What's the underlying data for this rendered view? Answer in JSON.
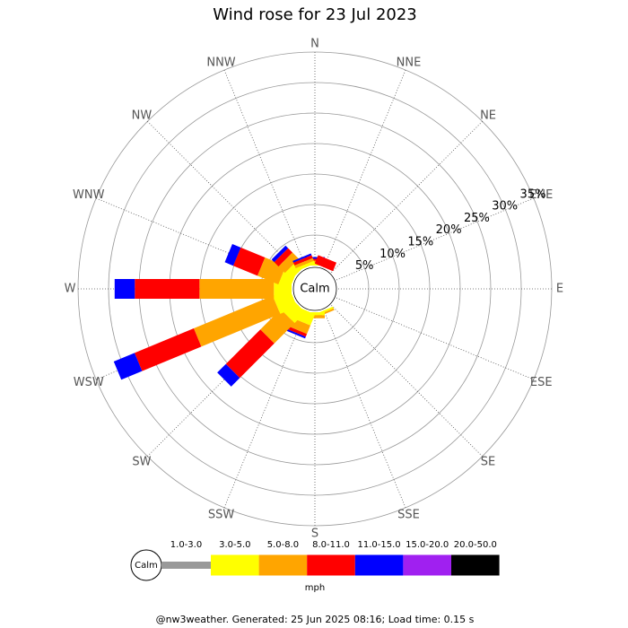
{
  "chart_data": {
    "type": "windrose",
    "title": "Wind rose for 23 Jul 2023",
    "categories": [
      "N",
      "NNE",
      "NE",
      "ENE",
      "E",
      "ESE",
      "SE",
      "SSE",
      "S",
      "SSW",
      "SW",
      "WSW",
      "W",
      "WNW",
      "NW",
      "NNW"
    ],
    "series": [
      {
        "name": "1.0-3.0",
        "color": "#999999",
        "values": [
          0,
          0,
          0,
          0,
          0,
          0,
          0,
          0,
          0,
          0,
          0,
          0,
          0,
          0,
          0,
          0
        ]
      },
      {
        "name": "3.0-5.0",
        "color": "#ffff00",
        "values": [
          0.3,
          0,
          0,
          0,
          0,
          0,
          0,
          0.3,
          0.5,
          2,
          2.5,
          3,
          2.9,
          2,
          1.5,
          0.5
        ]
      },
      {
        "name": "5.0-8.0",
        "color": "#ffa500",
        "values": [
          0.5,
          0,
          0,
          0,
          0,
          0,
          0,
          0.3,
          0.5,
          1.5,
          4.7,
          14,
          12.2,
          3.7,
          1.5,
          0.5
        ]
      },
      {
        "name": "8.0-11.0",
        "color": "#ff0000",
        "values": [
          0.3,
          1.5,
          0,
          0,
          0,
          0,
          0,
          0,
          0,
          0.5,
          8,
          10.5,
          10.6,
          4.3,
          1,
          0.5
        ]
      },
      {
        "name": "11.0-15.0",
        "color": "#0000ff",
        "values": [
          0.3,
          0,
          0,
          0,
          0,
          0,
          0,
          0,
          0,
          0.3,
          2,
          3.7,
          3.3,
          1.5,
          0.6,
          0.3
        ]
      },
      {
        "name": "15.0-20.0",
        "color": "#a020f0",
        "values": [
          0,
          0,
          0,
          0,
          0,
          0,
          0,
          0,
          0,
          0,
          0,
          0,
          0,
          0,
          0,
          0
        ]
      },
      {
        "name": "20.0-50.0",
        "color": "#000000",
        "values": [
          0,
          0,
          0,
          0,
          0,
          0,
          0,
          0,
          0,
          0,
          0,
          0,
          0,
          0,
          0,
          0
        ]
      }
    ],
    "rlim": [
      0,
      35
    ],
    "rticks": [
      {
        "value": 5,
        "label": "5%"
      },
      {
        "value": 10,
        "label": "10%"
      },
      {
        "value": 15,
        "label": "15%"
      },
      {
        "value": 20,
        "label": "20%"
      },
      {
        "value": 25,
        "label": "25%"
      },
      {
        "value": 30,
        "label": "30%"
      },
      {
        "value": 35,
        "label": "35%"
      }
    ],
    "calm_label": "Calm",
    "legend_calm_label": "Calm",
    "legend_unit": "mph",
    "footer": "@nw3weather. Generated: 25 Jun 2025 08:16; Load time: 0.15 s"
  }
}
